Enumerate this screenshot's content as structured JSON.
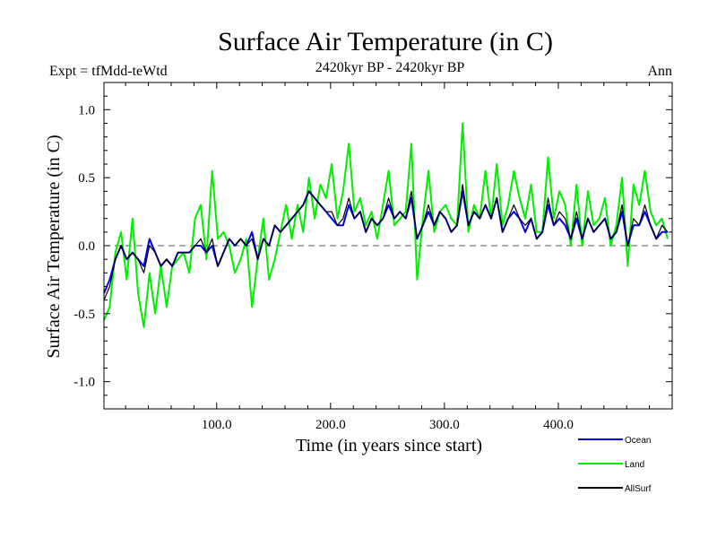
{
  "chart_data": {
    "type": "line",
    "title": "Surface Air Temperature (in C)",
    "subtitle": "2420kyr BP - 2420kyr BP",
    "experiment_label": "Expt = tfMdd-teWtd",
    "period_label": "Ann",
    "xlabel": "Time (in years since start)",
    "ylabel": "Surface Air Temperature (in C)",
    "xlim": [
      1,
      500
    ],
    "ylim": [
      -1.2,
      1.2
    ],
    "x_ticks": [
      100,
      200,
      300,
      400
    ],
    "x_tick_labels": [
      "100.0",
      "200.0",
      "300.0",
      "400.0"
    ],
    "y_ticks": [
      -1.0,
      -0.5,
      0.0,
      0.5,
      1.0
    ],
    "y_tick_labels": [
      "-1.0",
      "-0.5",
      "0.0",
      "0.5",
      "1.0"
    ],
    "reference_line": 0.0,
    "legend_position": "bottom-right",
    "x_start": 1,
    "x_step": 5,
    "series": [
      {
        "name": "Land",
        "color": "#00ee00",
        "values": [
          -0.55,
          -0.45,
          -0.05,
          0.1,
          -0.25,
          0.2,
          -0.35,
          -0.6,
          -0.2,
          -0.5,
          -0.15,
          -0.45,
          -0.15,
          -0.1,
          -0.05,
          -0.2,
          0.2,
          0.3,
          -0.1,
          0.55,
          0.05,
          0.1,
          0.0,
          -0.2,
          -0.1,
          0.05,
          -0.45,
          -0.1,
          0.2,
          -0.25,
          -0.1,
          0.1,
          0.3,
          0.05,
          0.3,
          0.1,
          0.5,
          0.2,
          0.45,
          0.35,
          0.6,
          0.2,
          0.4,
          0.75,
          0.25,
          0.35,
          0.15,
          0.25,
          0.05,
          0.3,
          0.55,
          0.15,
          0.2,
          0.25,
          0.75,
          -0.25,
          0.2,
          0.55,
          0.1,
          0.25,
          0.3,
          0.2,
          0.15,
          0.9,
          0.1,
          0.3,
          0.2,
          0.55,
          0.2,
          0.6,
          0.15,
          0.3,
          0.55,
          0.35,
          0.2,
          0.45,
          0.1,
          0.1,
          0.65,
          0.2,
          0.4,
          0.3,
          0.0,
          0.45,
          0.0,
          0.4,
          0.15,
          0.2,
          0.35,
          0.0,
          0.15,
          0.5,
          -0.15,
          0.45,
          0.3,
          0.55,
          0.25,
          0.15,
          0.2,
          0.05
        ]
      },
      {
        "name": "Ocean",
        "color": "#0000ee",
        "values": [
          -0.35,
          -0.25,
          -0.1,
          0.0,
          -0.1,
          -0.05,
          -0.1,
          -0.15,
          0.05,
          -0.05,
          -0.15,
          -0.1,
          -0.15,
          -0.05,
          -0.05,
          -0.05,
          0.0,
          0.0,
          -0.05,
          0.0,
          -0.15,
          -0.05,
          0.05,
          0.0,
          0.05,
          0.0,
          0.1,
          -0.1,
          0.05,
          0.0,
          0.15,
          0.1,
          0.15,
          0.2,
          0.25,
          0.3,
          0.4,
          0.35,
          0.3,
          0.25,
          0.2,
          0.15,
          0.15,
          0.3,
          0.2,
          0.25,
          0.1,
          0.2,
          0.15,
          0.2,
          0.3,
          0.2,
          0.25,
          0.2,
          0.35,
          0.05,
          0.15,
          0.25,
          0.15,
          0.25,
          0.2,
          0.1,
          0.15,
          0.4,
          0.15,
          0.25,
          0.2,
          0.3,
          0.2,
          0.35,
          0.1,
          0.2,
          0.25,
          0.2,
          0.1,
          0.2,
          0.05,
          0.1,
          0.3,
          0.15,
          0.2,
          0.15,
          0.05,
          0.2,
          0.05,
          0.2,
          0.1,
          0.15,
          0.2,
          0.05,
          0.1,
          0.25,
          0.0,
          0.15,
          0.15,
          0.25,
          0.15,
          0.05,
          0.1,
          0.1
        ]
      },
      {
        "name": "AllSurf",
        "color": "#000000",
        "values": [
          -0.4,
          -0.3,
          -0.1,
          0.0,
          -0.1,
          -0.05,
          -0.1,
          -0.2,
          0.0,
          -0.05,
          -0.15,
          -0.1,
          -0.15,
          -0.05,
          -0.05,
          -0.05,
          0.0,
          0.05,
          -0.05,
          0.05,
          -0.15,
          -0.05,
          0.05,
          0.0,
          0.05,
          0.0,
          0.05,
          -0.1,
          0.05,
          0.0,
          0.15,
          0.1,
          0.15,
          0.2,
          0.25,
          0.3,
          0.4,
          0.35,
          0.3,
          0.25,
          0.25,
          0.15,
          0.2,
          0.35,
          0.2,
          0.25,
          0.1,
          0.2,
          0.15,
          0.2,
          0.35,
          0.2,
          0.25,
          0.2,
          0.4,
          0.05,
          0.15,
          0.3,
          0.15,
          0.25,
          0.2,
          0.1,
          0.15,
          0.45,
          0.15,
          0.25,
          0.2,
          0.3,
          0.2,
          0.35,
          0.1,
          0.2,
          0.3,
          0.2,
          0.15,
          0.2,
          0.05,
          0.1,
          0.35,
          0.15,
          0.25,
          0.2,
          0.05,
          0.25,
          0.05,
          0.2,
          0.1,
          0.15,
          0.2,
          0.05,
          0.1,
          0.3,
          0.0,
          0.2,
          0.15,
          0.3,
          0.15,
          0.05,
          0.15,
          0.1
        ]
      }
    ]
  }
}
